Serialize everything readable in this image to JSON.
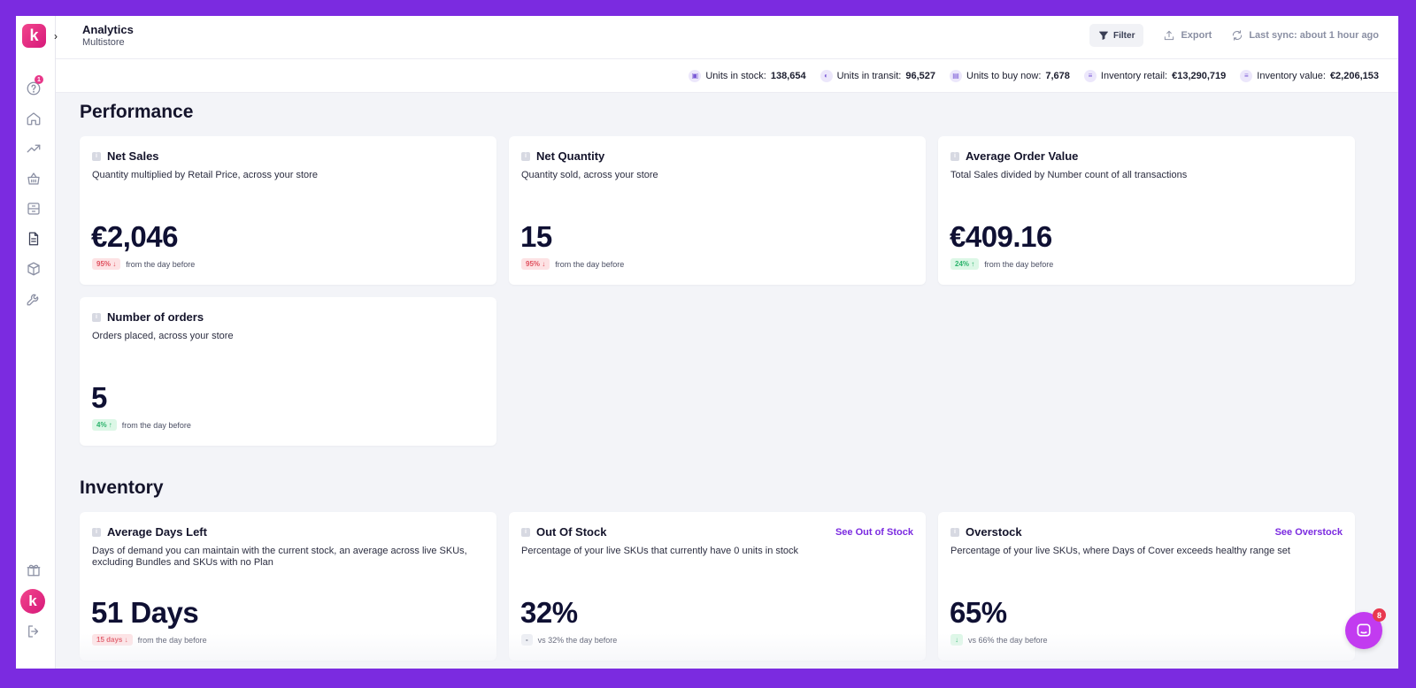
{
  "app": {
    "logo_letter": "k",
    "avatar_letter": "k",
    "notification_count": "1"
  },
  "header": {
    "title": "Analytics",
    "subtitle": "Multistore",
    "filter_label": "Filter",
    "export_label": "Export",
    "sync_label": "Last sync: about 1 hour ago"
  },
  "stats": [
    {
      "label": "Units in stock:",
      "value": "138,654"
    },
    {
      "label": "Units in transit:",
      "value": "96,527"
    },
    {
      "label": "Units to buy now:",
      "value": "7,678"
    },
    {
      "label": "Inventory retail:",
      "value": "€13,290,719"
    },
    {
      "label": "Inventory value:",
      "value": "€2,206,153"
    }
  ],
  "performance": {
    "title": "Performance",
    "cards": [
      {
        "title": "Net Sales",
        "desc": "Quantity multiplied by Retail Price, across your store",
        "value": "€2,046",
        "pill": "95% ↓",
        "pill_type": "down",
        "foot": "from the day before"
      },
      {
        "title": "Net Quantity",
        "desc": "Quantity sold, across your store",
        "value": "15",
        "pill": "95% ↓",
        "pill_type": "down",
        "foot": "from the day before"
      },
      {
        "title": "Average Order Value",
        "desc": "Total Sales divided by Number count of all transactions",
        "value": "€409.16",
        "pill": "24% ↑",
        "pill_type": "up",
        "foot": "from the day before"
      },
      {
        "title": "Number of orders",
        "desc": "Orders placed, across your store",
        "value": "5",
        "pill": "4% ↑",
        "pill_type": "up",
        "foot": "from the day before"
      }
    ]
  },
  "inventory": {
    "title": "Inventory",
    "cards": [
      {
        "title": "Average Days Left",
        "desc": "Days of demand you can maintain with the current stock, an average across live SKUs, excluding Bundles and SKUs with no Plan",
        "value": "51 Days",
        "pill": "15 days ↓",
        "pill_type": "down",
        "foot": "from the day before"
      },
      {
        "title": "Out Of Stock",
        "link": "See Out of Stock",
        "desc": "Percentage of your live SKUs that currently have 0 units in stock",
        "value": "32%",
        "pill": "-",
        "pill_type": "neutral",
        "foot": "vs 32% the day before"
      },
      {
        "title": "Overstock",
        "link": "See Overstock",
        "desc": "Percentage of your live SKUs, where Days of Cover exceeds healthy range set",
        "value": "65%",
        "pill": "↓",
        "pill_type": "up",
        "foot": "vs 66% the day before"
      }
    ]
  },
  "chat": {
    "badge": "8"
  }
}
